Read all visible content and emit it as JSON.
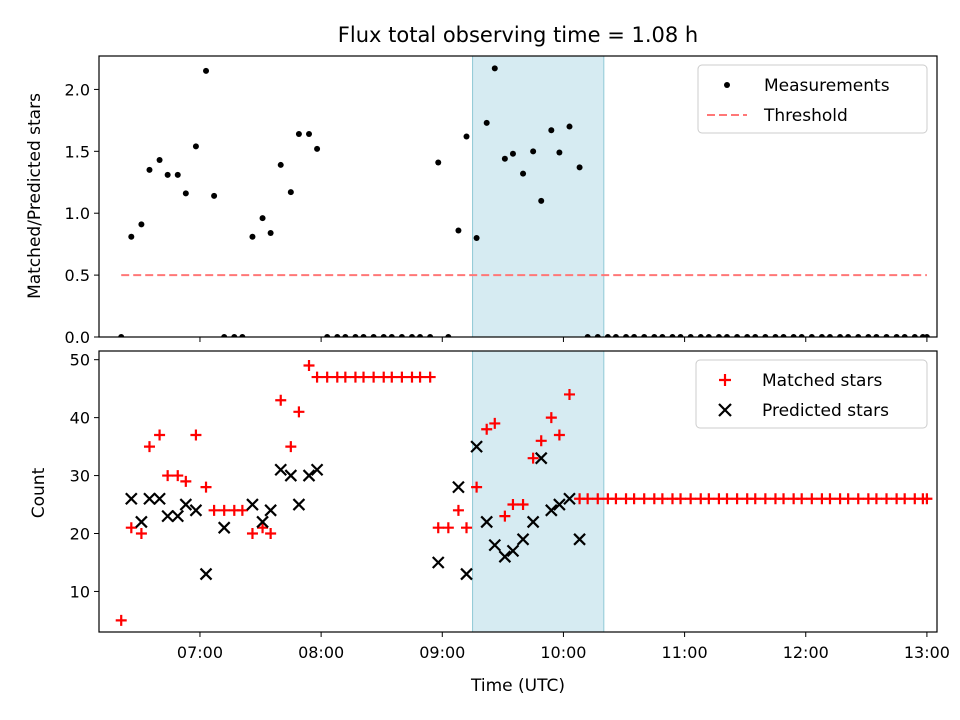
{
  "figure": {
    "title": "Flux total observing time = 1.08 h",
    "xlabel": "Time (UTC)"
  },
  "colors": {
    "measurements": "#000000",
    "threshold": "#ff7777",
    "matched": "#ff0000",
    "predicted": "#000000",
    "highlight_fill": "#add8e6",
    "highlight_edge": "#8fc9d6"
  },
  "chart_data": [
    {
      "type": "scatter",
      "panel": "top",
      "ylabel": "Matched/Predicted stars",
      "xlim": [
        "06:10",
        "13:05"
      ],
      "ylim": [
        0,
        2.27
      ],
      "yticks": [
        0.0,
        0.5,
        1.0,
        1.5,
        2.0
      ],
      "ytick_labels": [
        "0.0",
        "0.5",
        "1.0",
        "1.5",
        "2.0"
      ],
      "legend_position": "top-right",
      "highlight": {
        "start": "09:15",
        "end": "10:20"
      },
      "series": [
        {
          "name": "Measurements",
          "marker": "dot",
          "points": [
            [
              "06:21",
              0.0
            ],
            [
              "06:26",
              0.81
            ],
            [
              "06:31",
              0.91
            ],
            [
              "06:35",
              1.35
            ],
            [
              "06:40",
              1.43
            ],
            [
              "06:44",
              1.31
            ],
            [
              "06:49",
              1.31
            ],
            [
              "06:53",
              1.16
            ],
            [
              "06:58",
              1.54
            ],
            [
              "07:03",
              2.15
            ],
            [
              "07:07",
              1.14
            ],
            [
              "07:12",
              0.0
            ],
            [
              "07:17",
              0.0
            ],
            [
              "07:21",
              0.0
            ],
            [
              "07:26",
              0.81
            ],
            [
              "07:31",
              0.96
            ],
            [
              "07:35",
              0.84
            ],
            [
              "07:40",
              1.39
            ],
            [
              "07:45",
              1.17
            ],
            [
              "07:49",
              1.64
            ],
            [
              "07:54",
              1.64
            ],
            [
              "07:58",
              1.52
            ],
            [
              "08:03",
              0.0
            ],
            [
              "08:08",
              0.0
            ],
            [
              "08:12",
              0.0
            ],
            [
              "08:17",
              0.0
            ],
            [
              "08:21",
              0.0
            ],
            [
              "08:26",
              0.0
            ],
            [
              "08:31",
              0.0
            ],
            [
              "08:35",
              0.0
            ],
            [
              "08:40",
              0.0
            ],
            [
              "08:45",
              0.0
            ],
            [
              "08:49",
              0.0
            ],
            [
              "08:54",
              0.0
            ],
            [
              "08:58",
              1.41
            ],
            [
              "09:03",
              0.0
            ],
            [
              "09:08",
              0.86
            ],
            [
              "09:12",
              1.62
            ],
            [
              "09:17",
              0.8
            ],
            [
              "09:22",
              1.73
            ],
            [
              "09:26",
              2.17
            ],
            [
              "09:31",
              1.44
            ],
            [
              "09:35",
              1.48
            ],
            [
              "09:40",
              1.32
            ],
            [
              "09:45",
              1.5
            ],
            [
              "09:49",
              1.1
            ],
            [
              "09:54",
              1.67
            ],
            [
              "09:58",
              1.49
            ],
            [
              "10:03",
              1.7
            ],
            [
              "10:08",
              1.37
            ],
            [
              "10:12",
              0.0
            ],
            [
              "10:17",
              0.0
            ],
            [
              "10:22",
              0.0
            ],
            [
              "10:26",
              0.0
            ],
            [
              "10:31",
              0.0
            ],
            [
              "10:35",
              0.0
            ],
            [
              "10:40",
              0.0
            ],
            [
              "10:45",
              0.0
            ],
            [
              "10:49",
              0.0
            ],
            [
              "10:54",
              0.0
            ],
            [
              "10:58",
              0.0
            ],
            [
              "11:03",
              0.0
            ],
            [
              "11:08",
              0.0
            ],
            [
              "11:12",
              0.0
            ],
            [
              "11:17",
              0.0
            ],
            [
              "11:21",
              0.0
            ],
            [
              "11:26",
              0.0
            ],
            [
              "11:31",
              0.0
            ],
            [
              "11:35",
              0.0
            ],
            [
              "11:40",
              0.0
            ],
            [
              "11:45",
              0.0
            ],
            [
              "11:49",
              0.0
            ],
            [
              "11:54",
              0.0
            ],
            [
              "11:58",
              0.0
            ],
            [
              "12:03",
              0.0
            ],
            [
              "12:08",
              0.0
            ],
            [
              "12:12",
              0.0
            ],
            [
              "12:17",
              0.0
            ],
            [
              "12:21",
              0.0
            ],
            [
              "12:26",
              0.0
            ],
            [
              "12:31",
              0.0
            ],
            [
              "12:35",
              0.0
            ],
            [
              "12:40",
              0.0
            ],
            [
              "12:45",
              0.0
            ],
            [
              "12:49",
              0.0
            ],
            [
              "12:54",
              0.0
            ],
            [
              "12:58",
              0.0
            ],
            [
              "13:00",
              0.0
            ]
          ]
        },
        {
          "name": "Threshold",
          "marker": "dashed-line",
          "points": [
            [
              "06:21",
              0.5
            ],
            [
              "13:00",
              0.5
            ]
          ]
        }
      ]
    },
    {
      "type": "scatter",
      "panel": "bottom",
      "ylabel": "Count",
      "xlim": [
        "06:10",
        "13:05"
      ],
      "ylim": [
        3,
        51.5
      ],
      "yticks": [
        10,
        20,
        30,
        40,
        50
      ],
      "ytick_labels": [
        "10",
        "20",
        "30",
        "40",
        "50"
      ],
      "xticks": [
        "07:00",
        "08:00",
        "09:00",
        "10:00",
        "11:00",
        "12:00",
        "13:00"
      ],
      "legend_position": "top-right",
      "highlight": {
        "start": "09:15",
        "end": "10:20"
      },
      "series": [
        {
          "name": "Matched stars",
          "marker": "plus",
          "points": [
            [
              "06:21",
              5
            ],
            [
              "06:26",
              21
            ],
            [
              "06:31",
              20
            ],
            [
              "06:35",
              35
            ],
            [
              "06:40",
              37
            ],
            [
              "06:44",
              30
            ],
            [
              "06:49",
              30
            ],
            [
              "06:53",
              29
            ],
            [
              "06:58",
              37
            ],
            [
              "07:03",
              28
            ],
            [
              "07:07",
              24
            ],
            [
              "07:12",
              24
            ],
            [
              "07:17",
              24
            ],
            [
              "07:21",
              24
            ],
            [
              "07:26",
              20
            ],
            [
              "07:31",
              21
            ],
            [
              "07:35",
              20
            ],
            [
              "07:40",
              43
            ],
            [
              "07:45",
              35
            ],
            [
              "07:49",
              41
            ],
            [
              "07:54",
              49
            ],
            [
              "07:58",
              47
            ],
            [
              "08:03",
              47
            ],
            [
              "08:08",
              47
            ],
            [
              "08:12",
              47
            ],
            [
              "08:17",
              47
            ],
            [
              "08:21",
              47
            ],
            [
              "08:26",
              47
            ],
            [
              "08:31",
              47
            ],
            [
              "08:35",
              47
            ],
            [
              "08:40",
              47
            ],
            [
              "08:45",
              47
            ],
            [
              "08:49",
              47
            ],
            [
              "08:54",
              47
            ],
            [
              "08:58",
              21
            ],
            [
              "09:03",
              21
            ],
            [
              "09:08",
              24
            ],
            [
              "09:12",
              21
            ],
            [
              "09:17",
              28
            ],
            [
              "09:22",
              38
            ],
            [
              "09:26",
              39
            ],
            [
              "09:31",
              23
            ],
            [
              "09:35",
              25
            ],
            [
              "09:40",
              25
            ],
            [
              "09:45",
              33
            ],
            [
              "09:49",
              36
            ],
            [
              "09:54",
              40
            ],
            [
              "09:58",
              37
            ],
            [
              "10:03",
              44
            ],
            [
              "10:08",
              26
            ],
            [
              "10:12",
              26
            ],
            [
              "10:17",
              26
            ],
            [
              "10:22",
              26
            ],
            [
              "10:26",
              26
            ],
            [
              "10:31",
              26
            ],
            [
              "10:35",
              26
            ],
            [
              "10:40",
              26
            ],
            [
              "10:45",
              26
            ],
            [
              "10:49",
              26
            ],
            [
              "10:54",
              26
            ],
            [
              "10:58",
              26
            ],
            [
              "11:03",
              26
            ],
            [
              "11:08",
              26
            ],
            [
              "11:12",
              26
            ],
            [
              "11:17",
              26
            ],
            [
              "11:21",
              26
            ],
            [
              "11:26",
              26
            ],
            [
              "11:31",
              26
            ],
            [
              "11:35",
              26
            ],
            [
              "11:40",
              26
            ],
            [
              "11:45",
              26
            ],
            [
              "11:49",
              26
            ],
            [
              "11:54",
              26
            ],
            [
              "11:58",
              26
            ],
            [
              "12:03",
              26
            ],
            [
              "12:08",
              26
            ],
            [
              "12:12",
              26
            ],
            [
              "12:17",
              26
            ],
            [
              "12:21",
              26
            ],
            [
              "12:26",
              26
            ],
            [
              "12:31",
              26
            ],
            [
              "12:35",
              26
            ],
            [
              "12:40",
              26
            ],
            [
              "12:45",
              26
            ],
            [
              "12:49",
              26
            ],
            [
              "12:54",
              26
            ],
            [
              "12:58",
              26
            ],
            [
              "13:00",
              26
            ]
          ]
        },
        {
          "name": "Predicted stars",
          "marker": "cross",
          "points": [
            [
              "06:26",
              26
            ],
            [
              "06:31",
              22
            ],
            [
              "06:35",
              26
            ],
            [
              "06:40",
              26
            ],
            [
              "06:44",
              23
            ],
            [
              "06:49",
              23
            ],
            [
              "06:53",
              25
            ],
            [
              "06:58",
              24
            ],
            [
              "07:03",
              13
            ],
            [
              "07:12",
              21
            ],
            [
              "07:26",
              25
            ],
            [
              "07:31",
              22
            ],
            [
              "07:35",
              24
            ],
            [
              "07:40",
              31
            ],
            [
              "07:45",
              30
            ],
            [
              "07:49",
              25
            ],
            [
              "07:54",
              30
            ],
            [
              "07:58",
              31
            ],
            [
              "08:58",
              15
            ],
            [
              "09:08",
              28
            ],
            [
              "09:12",
              13
            ],
            [
              "09:17",
              35
            ],
            [
              "09:22",
              22
            ],
            [
              "09:26",
              18
            ],
            [
              "09:31",
              16
            ],
            [
              "09:35",
              17
            ],
            [
              "09:40",
              19
            ],
            [
              "09:45",
              22
            ],
            [
              "09:49",
              33
            ],
            [
              "09:54",
              24
            ],
            [
              "09:58",
              25
            ],
            [
              "10:03",
              26
            ],
            [
              "10:08",
              19
            ]
          ]
        }
      ]
    }
  ]
}
